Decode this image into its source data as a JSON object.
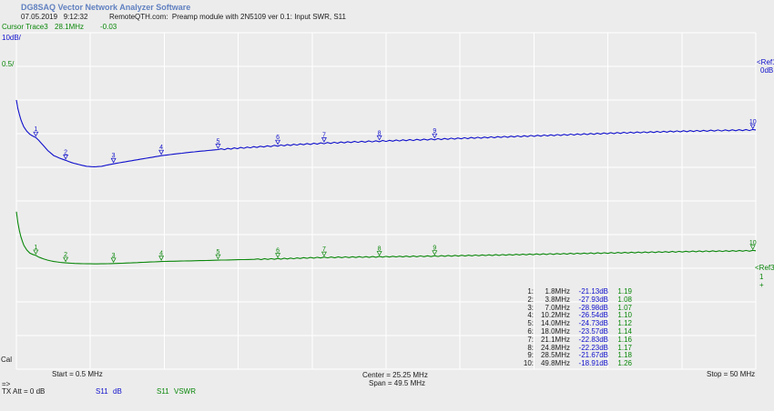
{
  "header": {
    "app_title": "DG8SAQ Vector Network Analyzer Software",
    "datetime": "07.05.2019   9:12:32",
    "description": "RemoteQTH.com:  Preamp module with 2N5109 ver 0.1: Input SWR, S11",
    "cursor_label": "Cursor Trace3",
    "cursor_freq": "28.1MHz",
    "cursor_value": "-0.03"
  },
  "axes": {
    "blue_scale": "10dB/",
    "green_scale": "0.5/",
    "ref1_label": "<Ref1",
    "ref1_value": "0dB",
    "ref3_label": "<Ref3",
    "ref3_value": "1",
    "ref3_mark": "+",
    "cal": "Cal",
    "sweep_arrow": "=>",
    "tx_att": "TX Att = 0 dB",
    "start": "Start = 0.5 MHz",
    "center": "Center = 25.25 MHz",
    "span": "Span = 49.5 MHz",
    "stop": "Stop = 50 MHz",
    "trace1_name": "S11",
    "trace1_unit": "dB",
    "trace3_name": "S11",
    "trace3_unit": "VSWR"
  },
  "colors": {
    "bg": "#ececec",
    "grid": "#ffffff",
    "blue": "#1010cc",
    "green": "#0a870a",
    "title": "#6080c0",
    "text": "#1a1a1a"
  },
  "chart_data": {
    "type": "line",
    "title": "Preamp module with 2N5109 ver 0.1: Input SWR, S11",
    "x_axis": {
      "unit": "MHz",
      "start": 0.5,
      "stop": 50,
      "center": 25.25,
      "span": 49.5,
      "divisions": 10
    },
    "y_axis_db": {
      "name": "S11 dB",
      "ref_db": 0,
      "db_per_div": 10,
      "ref_gridline_from_top": 1,
      "scale_label": "10dB/"
    },
    "y_axis_vswr": {
      "name": "S11 VSWR",
      "ref_vswr": 1,
      "vswr_per_div": 0.5,
      "ref_gridline_from_top": 7,
      "scale_label": "0.5/"
    },
    "grid": true,
    "series": [
      {
        "name": "S11 dB",
        "axis": "db",
        "points": [
          [
            0.5,
            -10.0
          ],
          [
            0.6,
            -12.5
          ],
          [
            0.7,
            -14.3
          ],
          [
            0.8,
            -15.8
          ],
          [
            0.9,
            -17.0
          ],
          [
            1.0,
            -18.0
          ],
          [
            1.2,
            -19.3
          ],
          [
            1.4,
            -20.2
          ],
          [
            1.6,
            -20.7
          ],
          [
            1.8,
            -21.13
          ],
          [
            2.0,
            -22.0
          ],
          [
            2.3,
            -23.5
          ],
          [
            2.6,
            -25.0
          ],
          [
            3.0,
            -26.5
          ],
          [
            3.4,
            -27.3
          ],
          [
            3.8,
            -27.93
          ],
          [
            4.2,
            -28.6
          ],
          [
            4.7,
            -29.2
          ],
          [
            5.2,
            -29.7
          ],
          [
            5.7,
            -29.85
          ],
          [
            6.2,
            -29.7
          ],
          [
            6.6,
            -29.3
          ],
          [
            7.0,
            -28.98
          ],
          [
            7.6,
            -28.5
          ],
          [
            8.4,
            -27.9
          ],
          [
            9.2,
            -27.3
          ],
          [
            10.2,
            -26.54
          ],
          [
            11.2,
            -26.0
          ],
          [
            12.2,
            -25.5
          ],
          [
            13.1,
            -25.1
          ],
          [
            14.0,
            -24.73
          ],
          [
            15.3,
            -24.3
          ],
          [
            16.6,
            -23.95
          ],
          [
            18.0,
            -23.57
          ],
          [
            19.5,
            -23.2
          ],
          [
            21.1,
            -22.83
          ],
          [
            22.9,
            -22.5
          ],
          [
            24.8,
            -22.23
          ],
          [
            26.6,
            -21.95
          ],
          [
            28.5,
            -21.67
          ],
          [
            30.5,
            -21.35
          ],
          [
            32.5,
            -21.05
          ],
          [
            34.5,
            -20.75
          ],
          [
            36.5,
            -20.45
          ],
          [
            38.5,
            -20.15
          ],
          [
            40.5,
            -19.85
          ],
          [
            42.5,
            -19.6
          ],
          [
            44.5,
            -19.35
          ],
          [
            46.5,
            -19.15
          ],
          [
            48.2,
            -19.0
          ],
          [
            49.8,
            -18.91
          ],
          [
            50.0,
            -18.9
          ]
        ]
      },
      {
        "name": "S11 VSWR",
        "axis": "vswr",
        "points": [
          [
            0.5,
            1.84
          ],
          [
            0.6,
            1.68
          ],
          [
            0.7,
            1.56
          ],
          [
            0.8,
            1.47
          ],
          [
            0.9,
            1.4
          ],
          [
            1.0,
            1.34
          ],
          [
            1.2,
            1.27
          ],
          [
            1.4,
            1.225
          ],
          [
            1.6,
            1.205
          ],
          [
            1.8,
            1.19
          ],
          [
            2.0,
            1.165
          ],
          [
            2.3,
            1.14
          ],
          [
            2.6,
            1.12
          ],
          [
            3.0,
            1.1
          ],
          [
            3.4,
            1.088
          ],
          [
            3.8,
            1.08
          ],
          [
            4.4,
            1.072
          ],
          [
            5.0,
            1.067
          ],
          [
            5.7,
            1.065
          ],
          [
            6.4,
            1.066
          ],
          [
            7.0,
            1.07
          ],
          [
            8.0,
            1.078
          ],
          [
            9.0,
            1.088
          ],
          [
            10.2,
            1.1
          ],
          [
            11.5,
            1.107
          ],
          [
            13.0,
            1.114
          ],
          [
            14.0,
            1.12
          ],
          [
            16.0,
            1.13
          ],
          [
            18.0,
            1.14
          ],
          [
            19.5,
            1.15
          ],
          [
            21.1,
            1.16
          ],
          [
            23.0,
            1.165
          ],
          [
            24.8,
            1.17
          ],
          [
            26.6,
            1.175
          ],
          [
            28.5,
            1.18
          ],
          [
            31.0,
            1.19
          ],
          [
            33.5,
            1.2
          ],
          [
            36.0,
            1.21
          ],
          [
            38.5,
            1.22
          ],
          [
            41.0,
            1.23
          ],
          [
            43.5,
            1.24
          ],
          [
            46.0,
            1.25
          ],
          [
            48.0,
            1.255
          ],
          [
            49.8,
            1.26
          ],
          [
            50.0,
            1.26
          ]
        ]
      }
    ],
    "markers": [
      {
        "n": 1,
        "freq_mhz": 1.8,
        "db": -21.13,
        "vswr": 1.19
      },
      {
        "n": 2,
        "freq_mhz": 3.8,
        "db": -27.93,
        "vswr": 1.08
      },
      {
        "n": 3,
        "freq_mhz": 7.0,
        "db": -28.98,
        "vswr": 1.07
      },
      {
        "n": 4,
        "freq_mhz": 10.2,
        "db": -26.54,
        "vswr": 1.1
      },
      {
        "n": 5,
        "freq_mhz": 14.0,
        "db": -24.73,
        "vswr": 1.12
      },
      {
        "n": 6,
        "freq_mhz": 18.0,
        "db": -23.57,
        "vswr": 1.14
      },
      {
        "n": 7,
        "freq_mhz": 21.1,
        "db": -22.83,
        "vswr": 1.16
      },
      {
        "n": 8,
        "freq_mhz": 24.8,
        "db": -22.23,
        "vswr": 1.17
      },
      {
        "n": 9,
        "freq_mhz": 28.5,
        "db": -21.67,
        "vswr": 1.18
      },
      {
        "n": 10,
        "freq_mhz": 49.8,
        "db": -18.91,
        "vswr": 1.26
      }
    ]
  }
}
